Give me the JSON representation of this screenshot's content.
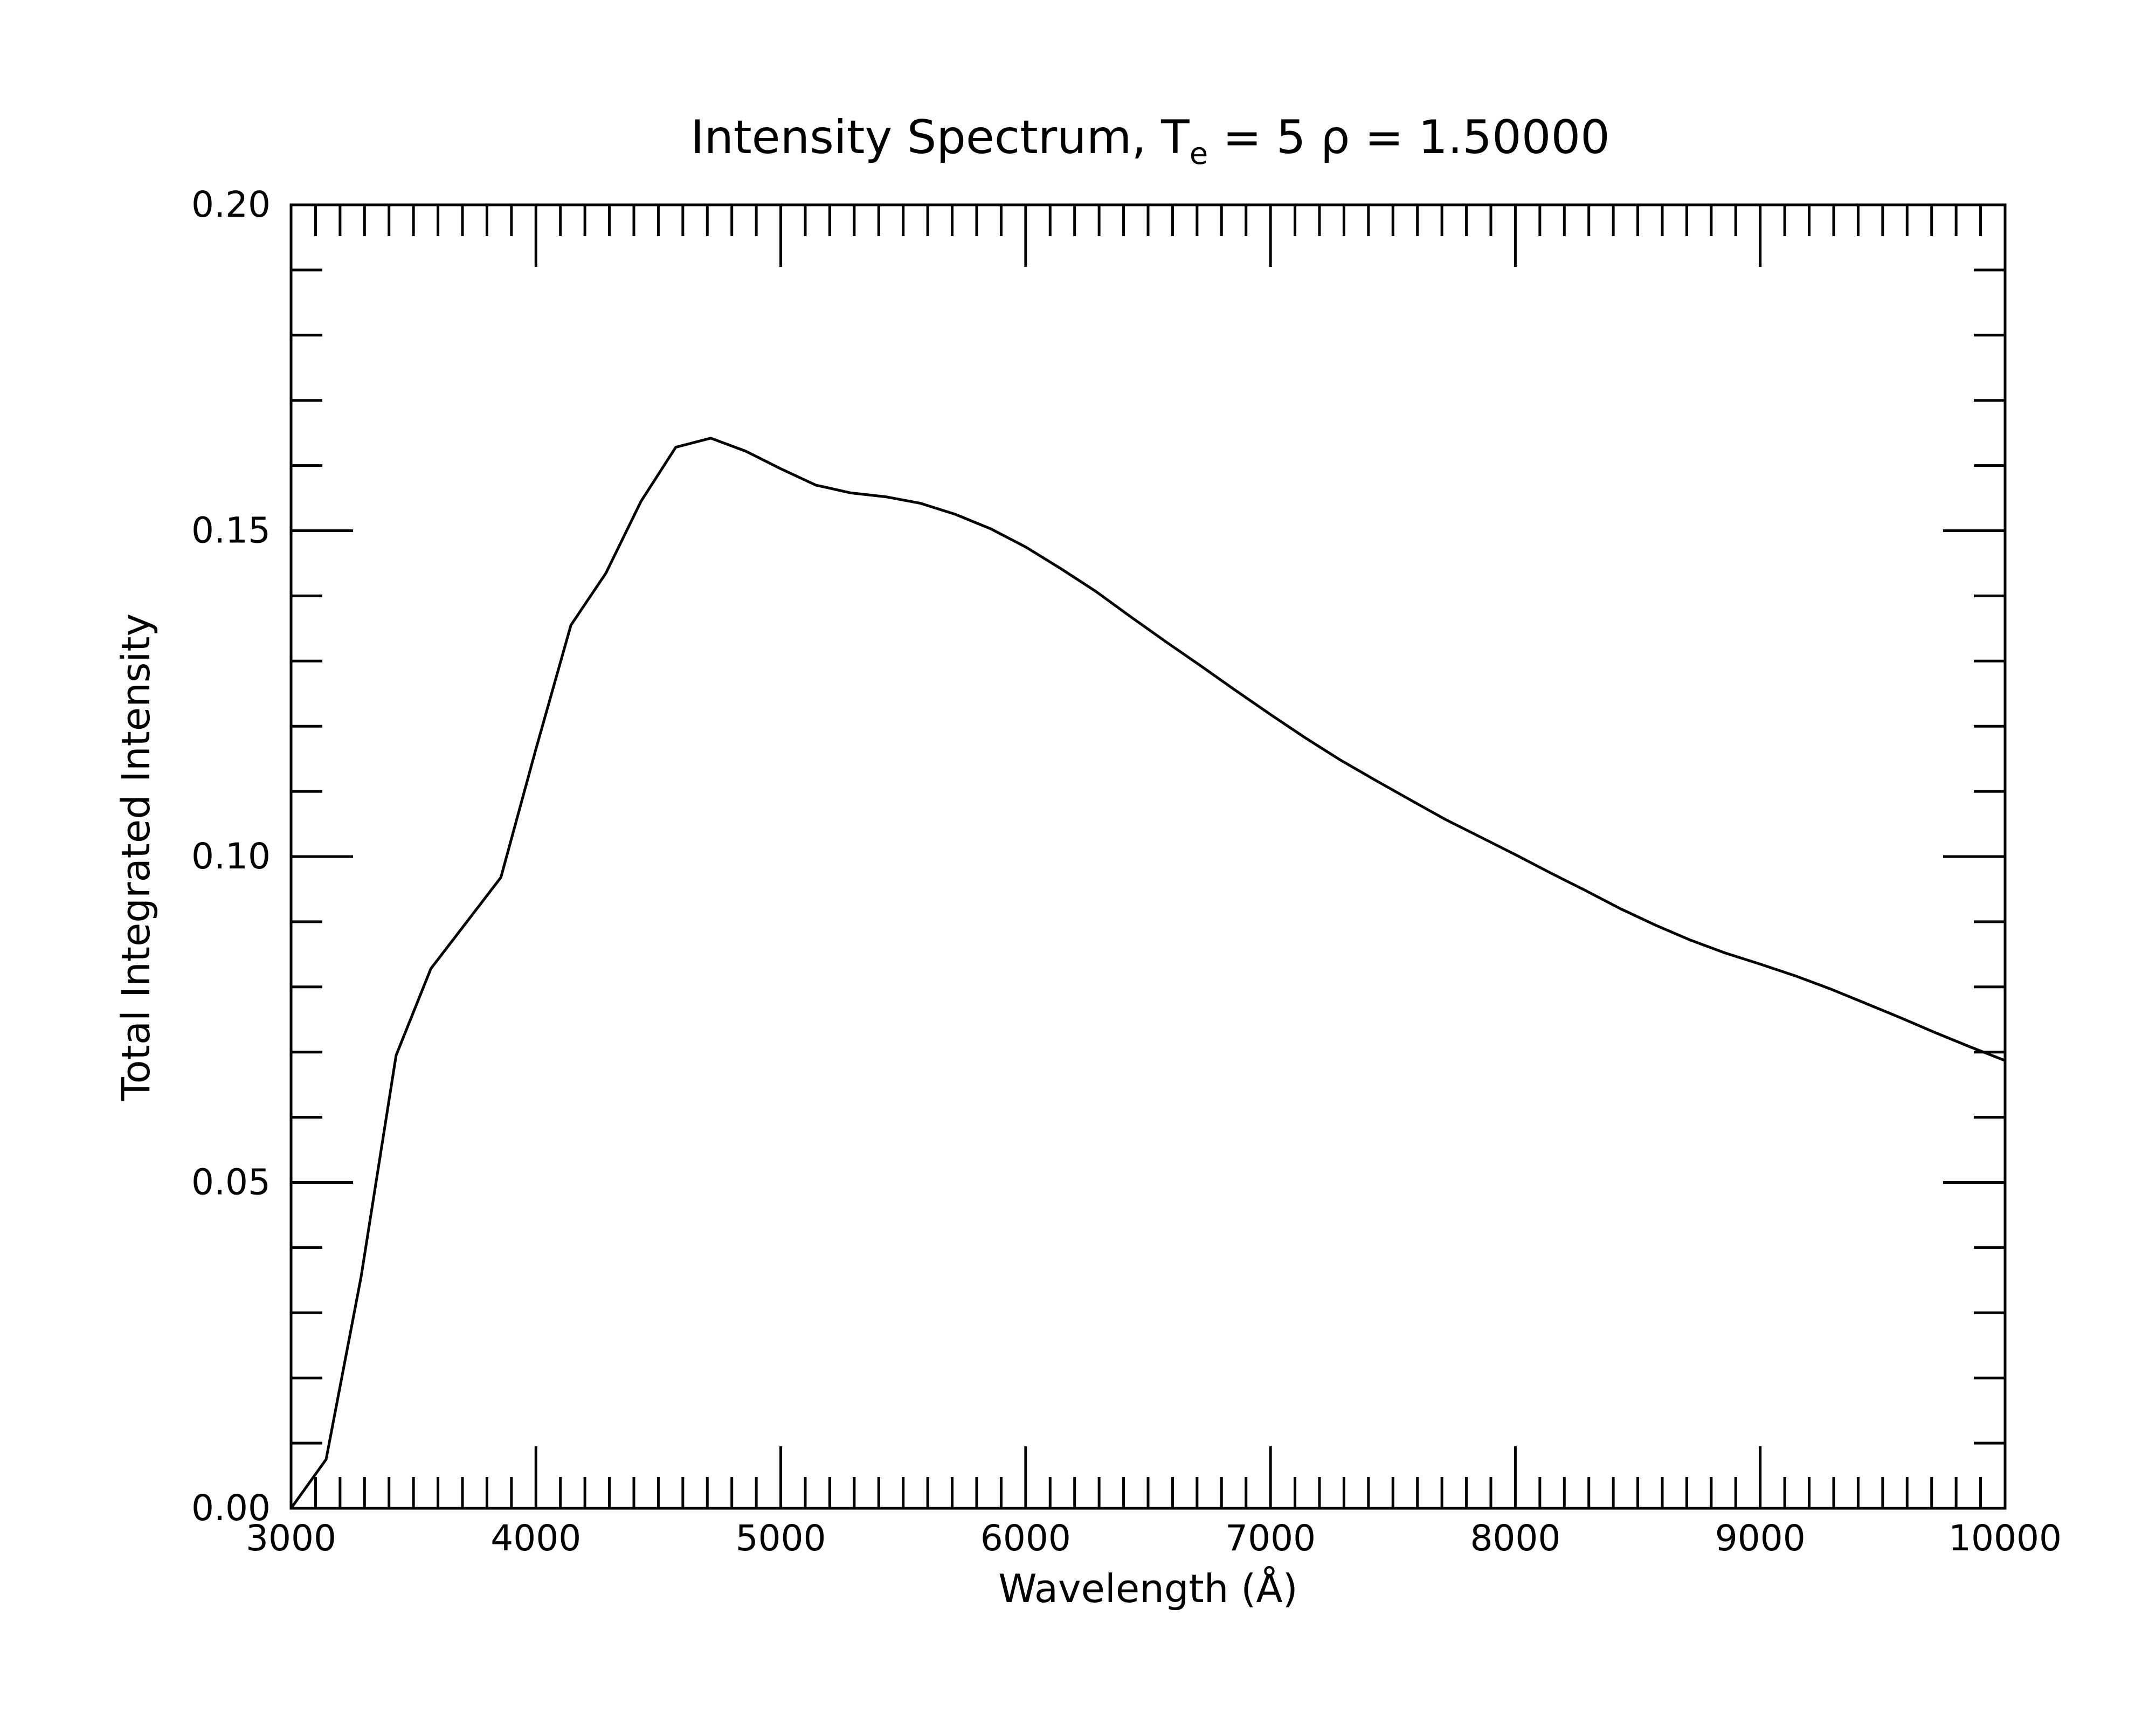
{
  "chart_data": {
    "type": "line",
    "title": {
      "prefix": "Intensity Spectrum, T",
      "subscript": "e",
      "suffix": " = 5 ρ = 1.50000"
    },
    "xlabel": "Wavelength (Å)",
    "ylabel": "Total Integrated Intensity",
    "xlim": [
      3000,
      10000
    ],
    "ylim": [
      0,
      0.2
    ],
    "x_major_ticks": [
      3000,
      4000,
      5000,
      6000,
      7000,
      8000,
      9000,
      10000
    ],
    "x_tick_labels": [
      "3000",
      "4000",
      "5000",
      "6000",
      "7000",
      "8000",
      "9000",
      "10000"
    ],
    "x_minor_step": 100,
    "y_major_ticks": [
      0,
      0.05,
      0.1,
      0.15,
      0.2
    ],
    "y_tick_labels": [
      "0.00",
      "0.05",
      "0.10",
      "0.15",
      "0.20"
    ],
    "y_minor_step": 0.01,
    "grid": false,
    "line_color": "#000000",
    "series": [
      {
        "x": [
          3000,
          3143,
          3286,
          3429,
          3571,
          3714,
          3857,
          4000,
          4143,
          4286,
          4429,
          4571,
          4714,
          4857,
          5000,
          5143,
          5286,
          5429,
          5571,
          5714,
          5857,
          6000,
          6143,
          6286,
          6429,
          6571,
          6714,
          6857,
          7000,
          7143,
          7286,
          7429,
          7571,
          7714,
          7857,
          8000,
          8143,
          8286,
          8429,
          8571,
          8714,
          8857,
          9000,
          9143,
          9286,
          9429,
          9571,
          9714,
          9857,
          10000
        ],
        "y": [
          0.0,
          0.0075,
          0.0355,
          0.0695,
          0.0828,
          0.0898,
          0.0968,
          0.1165,
          0.1355,
          0.1435,
          0.1545,
          0.1628,
          0.1642,
          0.1622,
          0.1595,
          0.157,
          0.1558,
          0.1552,
          0.1542,
          0.1525,
          0.1503,
          0.1475,
          0.1442,
          0.1407,
          0.1368,
          0.133,
          0.1293,
          0.1255,
          0.1218,
          0.1182,
          0.1148,
          0.1117,
          0.1087,
          0.1057,
          0.103,
          0.1003,
          0.0975,
          0.0948,
          0.092,
          0.0895,
          0.0872,
          0.0852,
          0.0835,
          0.0817,
          0.0797,
          0.0775,
          0.0753,
          0.073,
          0.0708,
          0.0687
        ]
      }
    ]
  }
}
